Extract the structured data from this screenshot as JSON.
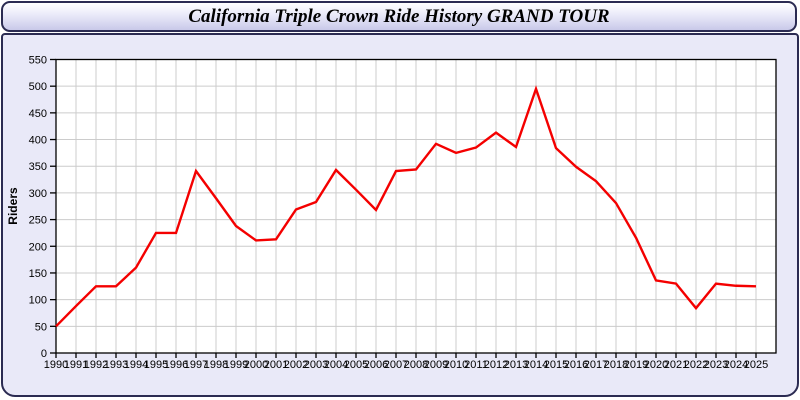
{
  "window": {
    "title": "California Triple Crown Ride History GRAND TOUR"
  },
  "chart_data": {
    "type": "line",
    "title": "California Triple Crown Ride History GRAND TOUR",
    "xlabel": "",
    "ylabel": "Riders",
    "x": [
      1990,
      1991,
      1992,
      1993,
      1994,
      1995,
      1996,
      1997,
      1998,
      1999,
      2000,
      2001,
      2002,
      2003,
      2004,
      2005,
      2006,
      2007,
      2008,
      2009,
      2010,
      2011,
      2012,
      2013,
      2014,
      2015,
      2016,
      2017,
      2018,
      2019,
      2020,
      2021,
      2022,
      2023,
      2024,
      2025
    ],
    "series": [
      {
        "name": "Riders",
        "color": "#f40000",
        "values": [
          50,
          88,
          125,
          125,
          160,
          225,
          225,
          341,
          290,
          238,
          211,
          213,
          269,
          283,
          343,
          306,
          268,
          341,
          344,
          392,
          375,
          385,
          413,
          386,
          495,
          384,
          349,
          322,
          281,
          216,
          136,
          130,
          84,
          130,
          126,
          125
        ]
      }
    ],
    "ylim": [
      0,
      550
    ],
    "ytick_step": 50,
    "grid": true,
    "legend_position": "none"
  },
  "colors": {
    "panel_background": "#e9e9f8",
    "titlebar_gradient_bottom": "#c9c9e9",
    "border": "#2b2b52",
    "plot_background": "#ffffff",
    "gridline": "#cccccc",
    "axis": "#000000",
    "line": "#f40000",
    "text": "#000000"
  }
}
